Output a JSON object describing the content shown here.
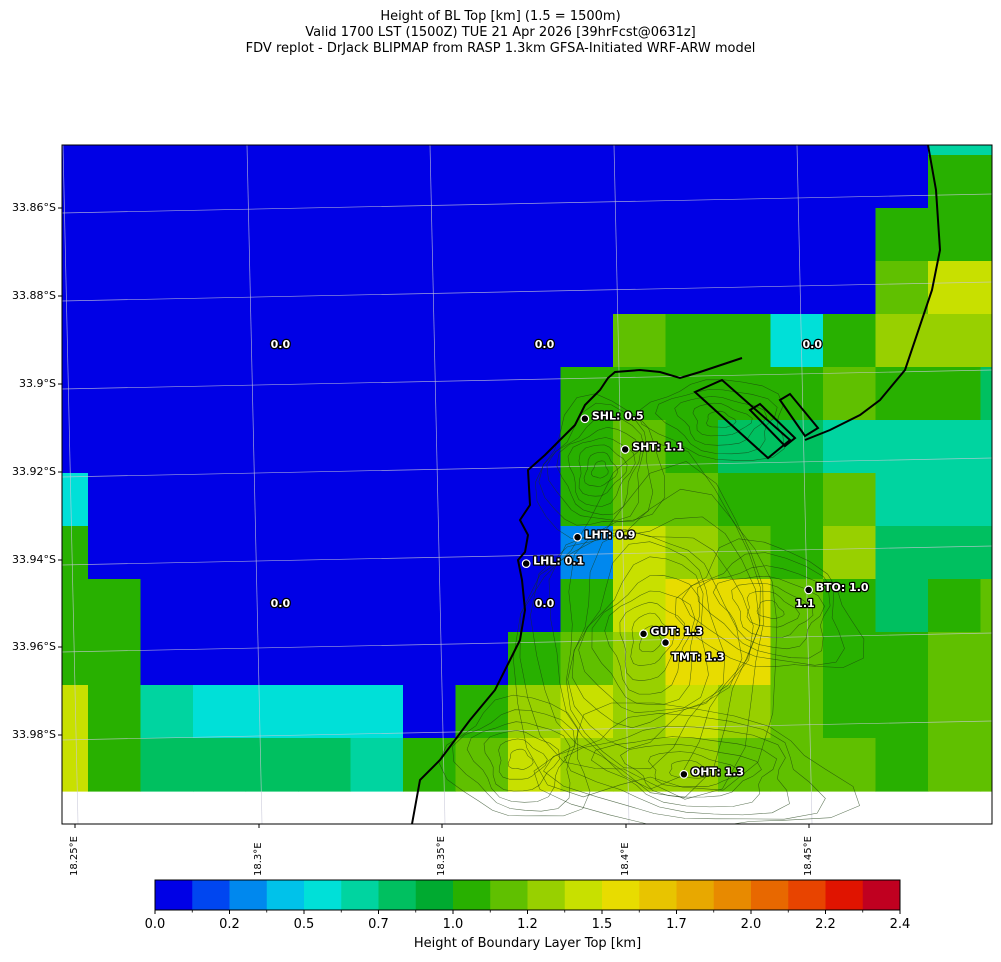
{
  "title": {
    "line1": "Height of BL Top [km] (1.5 = 1500m)",
    "line2": "Valid 1700 LST (1500Z) TUE 21 Apr 2026 [39hrFcst@0631z]",
    "line3": "FDV replot - DrJack BLIPMAP from RASP 1.3km GFSA-Initiated WRF-ARW model"
  },
  "map": {
    "lat_labels": [
      "33.86°S",
      "33.88°S",
      "33.9°S",
      "33.92°S",
      "33.94°S",
      "33.96°S",
      "33.98°S"
    ],
    "lon_labels": [
      "18.25°E",
      "18.3°E",
      "18.35°E",
      "18.4°E",
      "18.45°E"
    ],
    "grid_values_km": [
      [
        0.0,
        0.0,
        0.0,
        0.0,
        0.0,
        0.0,
        0.0,
        0.0,
        0.0,
        0.0,
        0.0,
        0.0,
        0.0,
        0.0,
        0.0,
        0.0,
        0.0,
        0.7,
        0.7
      ],
      [
        0.0,
        0.0,
        0.0,
        0.0,
        0.0,
        0.0,
        0.0,
        0.0,
        0.0,
        0.0,
        0.0,
        0.0,
        0.0,
        0.0,
        0.0,
        0.0,
        0.0,
        1.0,
        1.0
      ],
      [
        0.0,
        0.0,
        0.0,
        0.0,
        0.0,
        0.0,
        0.0,
        0.0,
        0.0,
        0.0,
        0.0,
        0.0,
        0.0,
        0.0,
        0.0,
        0.0,
        1.0,
        1.0,
        1.0
      ],
      [
        0.0,
        0.0,
        0.0,
        0.0,
        0.0,
        0.0,
        0.0,
        0.0,
        0.0,
        0.0,
        0.0,
        0.0,
        0.0,
        0.0,
        0.0,
        0.0,
        1.2,
        1.4,
        1.4
      ],
      [
        0.0,
        0.0,
        0.0,
        0.0,
        0.0,
        0.0,
        0.0,
        0.0,
        0.0,
        0.0,
        0.0,
        1.2,
        1.1,
        1.1,
        0.5,
        1.1,
        1.3,
        1.3,
        1.3
      ],
      [
        0.0,
        0.0,
        0.0,
        0.0,
        0.0,
        0.0,
        0.0,
        0.0,
        0.0,
        0.0,
        1.1,
        1.1,
        1.0,
        1.0,
        1.0,
        1.2,
        1.1,
        1.0,
        0.8
      ],
      [
        0.0,
        0.0,
        0.0,
        0.0,
        0.0,
        0.0,
        0.0,
        0.0,
        0.0,
        0.1,
        1.1,
        1.2,
        1.0,
        0.8,
        0.8,
        0.7,
        0.7,
        0.7,
        0.7
      ],
      [
        0.6,
        0.0,
        0.0,
        0.0,
        0.0,
        0.0,
        0.0,
        0.0,
        0.0,
        0.0,
        1.0,
        1.2,
        1.2,
        1.1,
        1.1,
        1.2,
        0.7,
        0.7,
        0.7
      ],
      [
        1.0,
        0.0,
        0.0,
        0.0,
        0.0,
        0.0,
        0.0,
        0.0,
        0.0,
        0.0,
        0.3,
        1.4,
        1.3,
        1.2,
        1.1,
        1.3,
        0.8,
        0.8,
        0.8
      ],
      [
        1.0,
        1.0,
        0.0,
        0.0,
        0.0,
        0.0,
        0.0,
        0.0,
        0.0,
        0.1,
        1.0,
        1.4,
        1.5,
        1.5,
        1.2,
        1.0,
        0.8,
        1.1,
        1.2
      ],
      [
        1.0,
        1.0,
        0.0,
        0.0,
        0.0,
        0.0,
        0.0,
        0.0,
        0.1,
        1.1,
        1.2,
        1.3,
        1.5,
        1.5,
        1.2,
        1.0,
        1.0,
        1.2,
        1.2
      ],
      [
        1.4,
        1.0,
        0.7,
        0.6,
        0.6,
        0.6,
        0.5,
        0.1,
        1.1,
        1.3,
        1.4,
        1.3,
        1.4,
        1.3,
        1.2,
        1.0,
        1.1,
        1.2,
        1.2
      ],
      [
        1.4,
        1.0,
        0.8,
        0.8,
        0.8,
        0.8,
        0.7,
        1.0,
        1.2,
        1.4,
        1.3,
        1.3,
        1.3,
        1.2,
        1.2,
        1.2,
        1.0,
        1.2,
        1.2
      ]
    ],
    "region_labels": [
      {
        "text": "0.0",
        "lon": 18.306,
        "lat": -33.891
      },
      {
        "text": "0.0",
        "lon": 18.378,
        "lat": -33.891
      },
      {
        "text": "0.0",
        "lon": 18.451,
        "lat": -33.891
      },
      {
        "text": "0.0",
        "lon": 18.306,
        "lat": -33.95
      },
      {
        "text": "0.0",
        "lon": 18.378,
        "lat": -33.95
      },
      {
        "text": "1.1",
        "lon": 18.449,
        "lat": -33.95
      }
    ],
    "stations": [
      {
        "label": "SHL: 0.5",
        "lon": 18.389,
        "lat": -33.908
      },
      {
        "label": "SHT: 1.1",
        "lon": 18.4,
        "lat": -33.915
      },
      {
        "label": "LHT: 0.9",
        "lon": 18.387,
        "lat": -33.935
      },
      {
        "label": "LHL: 0.1",
        "lon": 18.373,
        "lat": -33.941
      },
      {
        "label": "BTO: 1.0",
        "lon": 18.45,
        "lat": -33.947
      },
      {
        "label": "GUT: 1.3",
        "lon": 18.405,
        "lat": -33.957
      },
      {
        "label": "TMT: 1.3",
        "lon": 18.411,
        "lat": -33.959
      },
      {
        "label": "OHT: 1.3",
        "lon": 18.416,
        "lat": -33.989
      }
    ]
  },
  "colorbar": {
    "label": "Height of Boundary Layer Top [km]",
    "tick_labels": [
      "0.0",
      "0.2",
      "0.5",
      "0.7",
      "1.0",
      "1.2",
      "1.5",
      "1.7",
      "2.0",
      "2.2",
      "2.4"
    ],
    "colors": [
      "#0000e6",
      "#0046f0",
      "#0088ee",
      "#00c2ea",
      "#00e0d8",
      "#00d4a0",
      "#00c060",
      "#00aa30",
      "#28b000",
      "#60c000",
      "#98d000",
      "#c8e000",
      "#e8dc00",
      "#e8c400",
      "#e8a800",
      "#e88a00",
      "#e86800",
      "#e84400",
      "#e01400",
      "#c00020"
    ]
  }
}
